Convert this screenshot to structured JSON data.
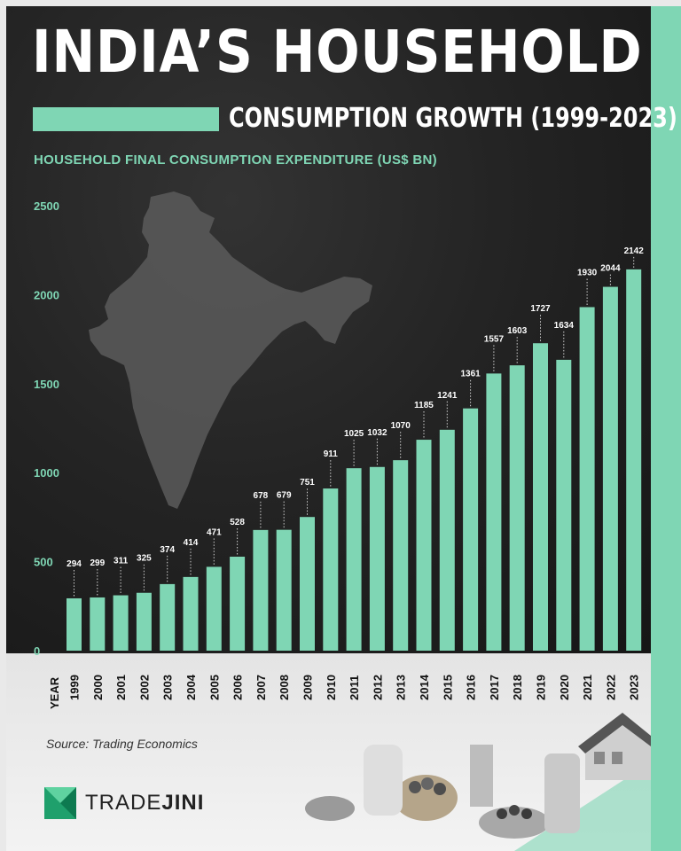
{
  "title": {
    "main": "INDIA’S HOUSEHOLD",
    "sub": "CONSUMPTION GROWTH (1999-2023)"
  },
  "chart_title": "HOUSEHOLD FINAL CONSUMPTION EXPENDITURE (US$ BN)",
  "source": "Source: Trading Economics",
  "logo": {
    "name_part1": "TRADE",
    "name_part2": "JINI"
  },
  "colors": {
    "accent": "#7fd6b4",
    "background": "#1c1c1c",
    "map": "#5a5a5a"
  },
  "chart_data": {
    "type": "bar",
    "title": "HOUSEHOLD FINAL CONSUMPTION EXPENDITURE (US$ BN)",
    "xlabel": "YEAR",
    "ylabel": "",
    "ylim": [
      0,
      2500
    ],
    "yticks": [
      0,
      500,
      1000,
      1500,
      2000,
      2500
    ],
    "grid": false,
    "categories": [
      "1999",
      "2000",
      "2001",
      "2002",
      "2003",
      "2004",
      "2005",
      "2006",
      "2007",
      "2008",
      "2009",
      "2010",
      "2011",
      "2012",
      "2013",
      "2014",
      "2015",
      "2016",
      "2017",
      "2018",
      "2019",
      "2020",
      "2021",
      "2022",
      "2023"
    ],
    "values": [
      294,
      299,
      311,
      325,
      374,
      414,
      471,
      528,
      678,
      679,
      751,
      911,
      1025,
      1032,
      1070,
      1185,
      1241,
      1361,
      1557,
      1603,
      1727,
      1634,
      1930,
      2044,
      2142
    ]
  }
}
